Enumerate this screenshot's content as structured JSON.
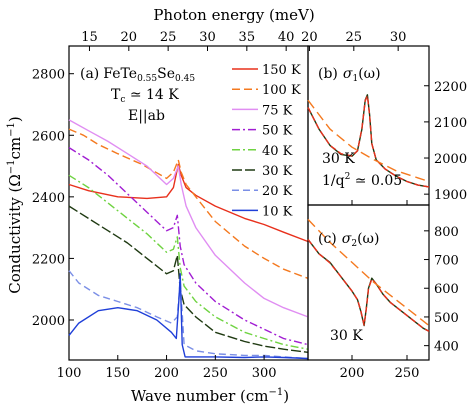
{
  "chart_data": [
    {
      "id": "a",
      "type": "line",
      "panel_label": "(a)",
      "annotation": {
        "material_prefix": "FeTe",
        "te_sub": "0.55",
        "material_mid": "Se",
        "se_sub": "0.45",
        "tc": "T",
        "tc_sub": "c",
        "tc_rest": " ≃ 14 K",
        "polarization": "E||ab"
      },
      "xlabel_main": "Wave number (cm",
      "xlabel_sup": "−1",
      "xlabel_close": ")",
      "ylabel_main": "Conductivity (Ω",
      "ylabel_sup": "−1",
      "ylabel_mid": "cm",
      "ylabel_sup2": "−1",
      "ylabel_close": ")",
      "top_axis_label": "Photon energy (meV)",
      "xlim": [
        100,
        345
      ],
      "ylim": [
        1870,
        2890
      ],
      "xticks": [
        100,
        150,
        200,
        250,
        300
      ],
      "yticks": [
        2000,
        2200,
        2400,
        2600,
        2800
      ],
      "top_ticks_mev": [
        15,
        20,
        25,
        30,
        35,
        40
      ],
      "cm_per_mev": 8.0655,
      "series": [
        {
          "name": "150 K",
          "color": "#e8301c",
          "dash": "",
          "x": [
            100,
            120,
            150,
            180,
            200,
            207,
            212,
            215,
            220,
            230,
            250,
            280,
            300,
            320,
            345
          ],
          "y": [
            2440,
            2420,
            2400,
            2395,
            2400,
            2430,
            2505,
            2470,
            2430,
            2405,
            2370,
            2330,
            2310,
            2285,
            2255
          ]
        },
        {
          "name": "100 K",
          "color": "#f4791f",
          "dash": "8,4",
          "x": [
            100,
            115,
            130,
            150,
            175,
            200,
            207,
            212,
            215,
            220,
            230,
            250,
            280,
            300,
            320,
            345
          ],
          "y": [
            2620,
            2600,
            2570,
            2540,
            2505,
            2460,
            2480,
            2520,
            2480,
            2440,
            2400,
            2320,
            2240,
            2200,
            2165,
            2135
          ]
        },
        {
          "name": "75 K",
          "color": "#e08ef2",
          "dash": "",
          "x": [
            100,
            120,
            140,
            160,
            180,
            200,
            207,
            212,
            215,
            220,
            230,
            250,
            280,
            300,
            320,
            345
          ],
          "y": [
            2650,
            2615,
            2580,
            2540,
            2500,
            2440,
            2460,
            2500,
            2440,
            2370,
            2300,
            2210,
            2120,
            2070,
            2040,
            2010
          ]
        },
        {
          "name": "50 K",
          "color": "#a11dd3",
          "dash": "8,3,2,3",
          "x": [
            100,
            120,
            140,
            160,
            180,
            200,
            207,
            211,
            214,
            218,
            230,
            250,
            280,
            300,
            320,
            345
          ],
          "y": [
            2560,
            2520,
            2470,
            2410,
            2350,
            2290,
            2300,
            2340,
            2240,
            2180,
            2120,
            2060,
            2000,
            1970,
            1940,
            1920
          ]
        },
        {
          "name": "40 K",
          "color": "#6fd341",
          "dash": "8,3,2,3",
          "x": [
            100,
            120,
            140,
            160,
            180,
            200,
            207,
            211,
            214,
            218,
            230,
            250,
            280,
            300,
            320,
            345
          ],
          "y": [
            2470,
            2430,
            2380,
            2330,
            2280,
            2220,
            2230,
            2270,
            2170,
            2110,
            2060,
            2010,
            1960,
            1940,
            1920,
            1905
          ]
        },
        {
          "name": "30 K",
          "color": "#1f3a12",
          "dash": "10,3",
          "x": [
            100,
            120,
            140,
            160,
            180,
            200,
            207,
            211,
            214,
            218,
            230,
            250,
            280,
            300,
            320,
            345
          ],
          "y": [
            2370,
            2330,
            2290,
            2250,
            2200,
            2150,
            2160,
            2210,
            2100,
            2050,
            2010,
            1960,
            1930,
            1915,
            1905,
            1895
          ]
        },
        {
          "name": "20 K",
          "color": "#7b8fe6",
          "dash": "7,4",
          "x": [
            100,
            110,
            130,
            150,
            170,
            190,
            205,
            211,
            214,
            218,
            230,
            250,
            280,
            300,
            320,
            345
          ],
          "y": [
            2160,
            2120,
            2080,
            2060,
            2040,
            2010,
            1990,
            2010,
            2130,
            1920,
            1900,
            1890,
            1885,
            1885,
            1880,
            1875
          ]
        },
        {
          "name": "10 K",
          "color": "#1f3fd8",
          "dash": "",
          "x": [
            100,
            110,
            130,
            150,
            170,
            190,
            205,
            210,
            213,
            214,
            216,
            219,
            230,
            250,
            280,
            300,
            320,
            345
          ],
          "y": [
            1950,
            1990,
            2030,
            2040,
            2030,
            2000,
            1960,
            1940,
            2080,
            2150,
            1920,
            1880,
            1880,
            1880,
            1878,
            1880,
            1878,
            1875
          ]
        }
      ]
    },
    {
      "id": "b",
      "type": "line",
      "panel_label": "(b)",
      "title_sigma": "σ",
      "title_sub": "1",
      "title_arg": "(ω)",
      "temp": "30 K",
      "fano_label": "1/q",
      "fano_sup": "2",
      "fano_val": " ≃ 0.05",
      "xlim": [
        160,
        270
      ],
      "ylim": [
        1870,
        2310
      ],
      "xticks": [
        200,
        250
      ],
      "yticks": [
        1900,
        2000,
        2100,
        2200
      ],
      "top_ticks_mev": [
        20,
        25,
        30
      ],
      "series": [
        {
          "name": "data",
          "color": "#1f3a12",
          "dash": "",
          "x": [
            160,
            170,
            180,
            190,
            200,
            205,
            209,
            212,
            214,
            216,
            218,
            222,
            230,
            240,
            250,
            260,
            270
          ],
          "y": [
            2140,
            2080,
            2035,
            2010,
            2005,
            2020,
            2080,
            2160,
            2175,
            2120,
            2040,
            1995,
            1970,
            1950,
            1935,
            1925,
            1920
          ]
        },
        {
          "name": "fit",
          "color": "#e8301c",
          "dash": "6,3",
          "x": [
            160,
            170,
            180,
            190,
            200,
            205,
            209,
            212,
            214,
            216,
            218,
            222,
            230,
            240,
            250,
            260,
            270
          ],
          "y": [
            2140,
            2080,
            2035,
            2012,
            2006,
            2020,
            2082,
            2158,
            2172,
            2118,
            2040,
            1995,
            1970,
            1950,
            1935,
            1925,
            1920
          ]
        },
        {
          "name": "background",
          "color": "#f4791f",
          "dash": "10,5",
          "x": [
            160,
            180,
            200,
            220,
            240,
            260,
            270
          ],
          "y": [
            2160,
            2080,
            2030,
            1995,
            1965,
            1945,
            1935
          ]
        }
      ]
    },
    {
      "id": "c",
      "type": "line",
      "panel_label": "(c)",
      "title_sigma": "σ",
      "title_sub": "2",
      "title_arg": "(ω)",
      "temp": "30 K",
      "xlabel_ticks": [
        200,
        250
      ],
      "xlim": [
        160,
        270
      ],
      "ylim": [
        350,
        890
      ],
      "xticks": [
        200,
        250
      ],
      "yticks": [
        400,
        500,
        600,
        700,
        800
      ],
      "series": [
        {
          "name": "data",
          "color": "#1f3a12",
          "dash": "",
          "x": [
            160,
            170,
            180,
            190,
            200,
            205,
            208,
            211,
            213,
            215,
            218,
            222,
            228,
            235,
            245,
            255,
            265,
            270
          ],
          "y": [
            770,
            720,
            690,
            640,
            590,
            560,
            520,
            470,
            530,
            600,
            635,
            615,
            580,
            550,
            520,
            490,
            460,
            450
          ]
        },
        {
          "name": "fit",
          "color": "#e8301c",
          "dash": "6,3",
          "x": [
            160,
            170,
            180,
            190,
            200,
            205,
            208,
            211,
            213,
            215,
            218,
            222,
            228,
            235,
            245,
            255,
            265,
            270
          ],
          "y": [
            770,
            720,
            688,
            640,
            590,
            560,
            522,
            472,
            528,
            598,
            632,
            615,
            580,
            550,
            520,
            490,
            460,
            450
          ]
        },
        {
          "name": "background",
          "color": "#f4791f",
          "dash": "10,5",
          "x": [
            160,
            180,
            200,
            220,
            240,
            260,
            270
          ],
          "y": [
            840,
            760,
            690,
            620,
            560,
            500,
            470
          ]
        }
      ]
    }
  ]
}
